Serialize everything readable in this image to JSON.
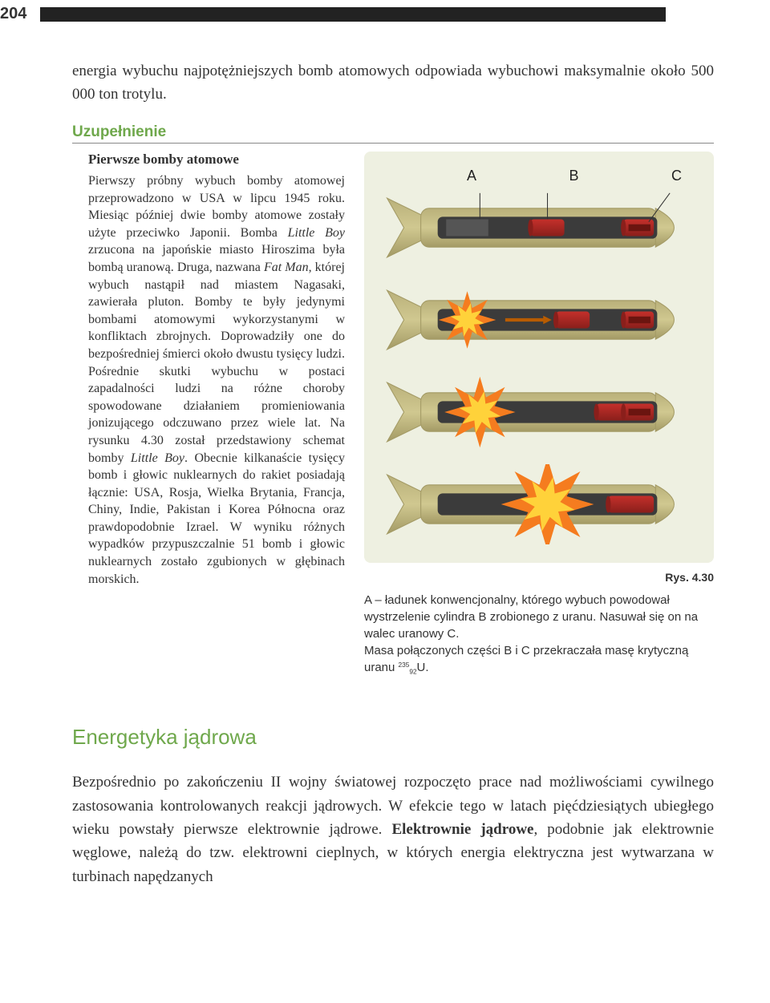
{
  "page_number": "204",
  "colors": {
    "supplement_header": "#6fa84c",
    "section_title": "#6fa84c",
    "figure_bg": "#eef0e1",
    "bomb_body": "#b9b07a",
    "bomb_body_dark": "#a39a65",
    "core_dark": "#3b3b3b",
    "target_red": "#c4302b",
    "target_red_dark": "#8a1f1b",
    "spark_yellow": "#ffd23a",
    "spark_orange": "#f57c1f",
    "arrow": "#b85c00"
  },
  "intro": "energia wybuchu najpotężniejszych bomb atomowych odpowiada wybuchowi maksymalnie około 500 000 ton trotylu.",
  "supplement_label": "Uzupełnienie",
  "sub_title": "Pierwsze bomby atomowe",
  "body_html": "Pierwszy próbny wybuch bomby atomowej przeprowadzono w USA w lipcu 1945 roku. Miesiąc później dwie bomby atomowe zostały użyte przeciwko Japonii. Bomba <em>Little Boy</em> zrzucona na japońskie miasto Hiroszima była bombą uranową. Druga, nazwana <em>Fat Man</em>, której wybuch nastąpił nad miastem Nagasaki, zawierała pluton. Bomby te były jedynymi bombami atomowymi wykorzystanymi w konfliktach zbrojnych. Doprowadziły one do bezpośredniej śmierci około dwustu tysięcy ludzi. Pośrednie skutki wybuchu w postaci zapadalności ludzi na różne choroby spowodowane działaniem promieniowania jonizującego odczuwano przez wiele lat. Na rysunku 4.30 został przedstawiony schemat bomby <em>Little Boy</em>. Obecnie kilkanaście tysięcy bomb i głowic nuklearnych do rakiet posiadają łącznie: USA, Rosja, Wielka Brytania, Francja, Chiny, Indie, Pakistan i Korea Północna oraz prawdopodobnie Izrael. W wyniku różnych wypadków przypuszczalnie 51 bomb i głowic nuklearnych zostało zgubionych w głębinach morskich.",
  "figure": {
    "labels": {
      "A": "A",
      "B": "B",
      "C": "C"
    },
    "caption_label": "Rys. 4.30",
    "caption_html": "A – ładunek konwencjonalny, którego wybuch powodował wystrzelenie cylindra B zrobionego z uranu. Nasuwał się on na walec uranowy C.<br>Masa połączonych części B i C przekraczała masę krytyczną uranu <span class='isotope'><span class='sup'>235</span><span class='sub'>92</span></span>U."
  },
  "section": {
    "title": "Energetyka jądrowa",
    "body_html": "Bezpośrednio po zakończeniu II wojny światowej rozpoczęto prace nad możliwościami cywilnego zastosowania kontrolowanych reakcji jądrowych. W efekcie tego w latach pięćdziesiątych ubiegłego wieku powstały pierwsze elektrownie jądrowe. <strong>Elektrownie jądrowe</strong>, podobnie jak elektrownie węglowe, należą do tzw. elektrowni cieplnych, w których energia elektryczna jest wytwarzana w turbinach napędzanych"
  }
}
